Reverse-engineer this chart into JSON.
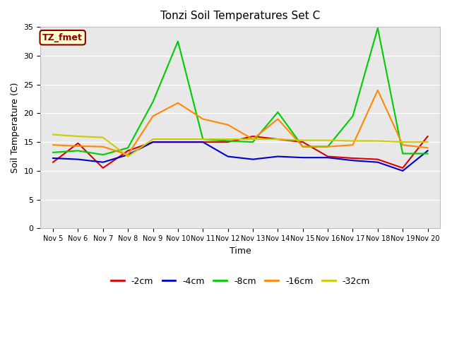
{
  "title": "Tonzi Soil Temperatures Set C",
  "xlabel": "Time",
  "ylabel": "Soil Temperature (C)",
  "ylim": [
    0,
    35
  ],
  "background_color": "#ffffff",
  "plot_bg": "#e8e8e8",
  "annotation_label": "TZ_fmet",
  "annotation_box_facecolor": "#ffffcc",
  "annotation_box_edgecolor": "#880000",
  "annotation_text_color": "#880000",
  "x_tick_labels": [
    "Nov 5",
    "Nov 6",
    "Nov 7",
    "Nov 8",
    "Nov 9",
    "Nov 10",
    "Nov 11",
    "Nov 12",
    "Nov 13",
    "Nov 14",
    "Nov 15",
    "Nov 16",
    "Nov 17",
    "Nov 18",
    "Nov 19",
    "Nov 20"
  ],
  "series": {
    "neg2cm": {
      "label": "-2cm",
      "color": "#dd0000",
      "x": [
        0,
        1,
        2,
        3,
        4,
        5,
        6,
        7,
        8,
        9,
        10,
        11,
        12,
        13,
        14,
        15
      ],
      "y": [
        11.5,
        14.8,
        10.5,
        13.5,
        15.0,
        15.0,
        15.0,
        15.0,
        16.0,
        15.5,
        15.0,
        12.5,
        12.2,
        12.0,
        10.5,
        16.0
      ]
    },
    "neg4cm": {
      "label": "-4cm",
      "color": "#0000cc",
      "x": [
        0,
        1,
        2,
        3,
        4,
        5,
        6,
        7,
        8,
        9,
        10,
        11,
        12,
        13,
        14,
        15
      ],
      "y": [
        12.2,
        12.0,
        11.5,
        12.8,
        15.0,
        15.0,
        15.0,
        12.5,
        12.0,
        12.5,
        12.3,
        12.3,
        11.8,
        11.5,
        10.0,
        13.5
      ]
    },
    "neg8cm": {
      "label": "-8cm",
      "color": "#00cc00",
      "x": [
        0,
        1,
        2,
        3,
        4,
        5,
        6,
        7,
        8,
        9,
        10,
        11,
        12,
        13,
        14,
        15
      ],
      "y": [
        13.2,
        13.5,
        12.8,
        14.0,
        22.0,
        32.5,
        15.5,
        15.2,
        15.0,
        20.2,
        14.2,
        14.2,
        19.5,
        34.8,
        13.0,
        13.0
      ]
    },
    "neg16cm": {
      "label": "-16cm",
      "color": "#ff8800",
      "x": [
        0,
        1,
        2,
        3,
        4,
        5,
        6,
        7,
        8,
        9,
        10,
        11,
        12,
        13,
        14,
        15
      ],
      "y": [
        14.5,
        14.3,
        14.2,
        12.8,
        19.5,
        21.8,
        19.0,
        18.0,
        15.5,
        19.0,
        14.2,
        14.2,
        14.5,
        24.0,
        14.5,
        14.0
      ]
    },
    "neg32cm": {
      "label": "-32cm",
      "color": "#cccc00",
      "x": [
        0,
        1,
        2,
        3,
        4,
        5,
        6,
        7,
        8,
        9,
        10,
        11,
        12,
        13,
        14,
        15
      ],
      "y": [
        16.3,
        16.0,
        15.8,
        12.5,
        15.5,
        15.5,
        15.5,
        15.5,
        15.5,
        15.5,
        15.3,
        15.3,
        15.2,
        15.2,
        15.0,
        15.0
      ]
    }
  },
  "legend_labels": [
    "-2cm",
    "-4cm",
    "-8cm",
    "-16cm",
    "-32cm"
  ],
  "legend_colors": [
    "#dd0000",
    "#0000cc",
    "#00cc00",
    "#ff8800",
    "#cccc00"
  ]
}
